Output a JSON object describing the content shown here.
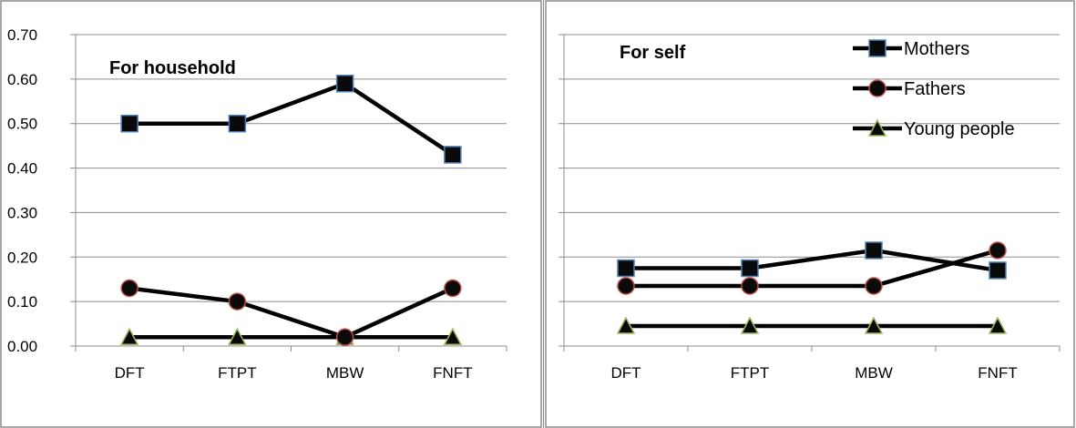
{
  "chart_data": [
    {
      "type": "line",
      "title": "For household",
      "categories": [
        "DFT",
        "FTPT",
        "MBW",
        "FNFT"
      ],
      "ylim": [
        0,
        0.7
      ],
      "yticks": [
        "0.00",
        "0.10",
        "0.20",
        "0.30",
        "0.40",
        "0.50",
        "0.60",
        "0.70"
      ],
      "grid": true,
      "show_yaxis_labels": true,
      "series": [
        {
          "name": "Mothers",
          "values": [
            0.5,
            0.5,
            0.59,
            0.43
          ],
          "marker": "square",
          "marker_fill": "#0a0a0a",
          "marker_edge": "#4f81bd"
        },
        {
          "name": "Fathers",
          "values": [
            0.13,
            0.1,
            0.02,
            0.13
          ],
          "marker": "circle",
          "marker_fill": "#0a0a0a",
          "marker_edge": "#c0504d"
        },
        {
          "name": "Young people",
          "values": [
            0.02,
            0.02,
            0.02,
            0.02
          ],
          "marker": "triangle",
          "marker_fill": "#0a0a0a",
          "marker_edge": "#9bbb59"
        }
      ]
    },
    {
      "type": "line",
      "title": "For self",
      "categories": [
        "DFT",
        "FTPT",
        "MBW",
        "FNFT"
      ],
      "ylim": [
        0,
        0.7
      ],
      "grid": true,
      "show_yaxis_labels": false,
      "legend": "top-right",
      "series": [
        {
          "name": "Mothers",
          "values": [
            0.175,
            0.175,
            0.215,
            0.17
          ],
          "marker": "square",
          "marker_fill": "#0a0a0a",
          "marker_edge": "#4f81bd"
        },
        {
          "name": "Fathers",
          "values": [
            0.135,
            0.135,
            0.135,
            0.215
          ],
          "marker": "circle",
          "marker_fill": "#0a0a0a",
          "marker_edge": "#c0504d"
        },
        {
          "name": "Young people",
          "values": [
            0.045,
            0.045,
            0.045,
            0.045
          ],
          "marker": "triangle",
          "marker_fill": "#0a0a0a",
          "marker_edge": "#9bbb59"
        }
      ]
    }
  ],
  "colors": {
    "line": "#000000",
    "grid": "#8c8c8c",
    "border": "#8c8c8c"
  }
}
